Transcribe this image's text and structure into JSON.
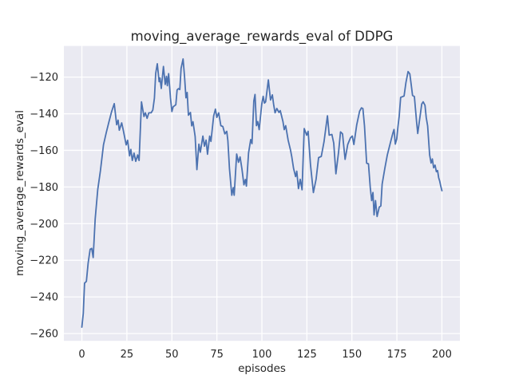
{
  "figure": {
    "title": "moving_average_rewards_eval of DDPG",
    "xlabel": "episodes",
    "ylabel": "moving_average_rewards_eval"
  },
  "axes": {
    "background_color": "#EAEAF2",
    "grid_color": "#FFFFFF",
    "line_color": "#4C72B0",
    "text_color": "#262626",
    "xlim": [
      -10,
      210
    ],
    "ylim": [
      -264,
      -103
    ],
    "xtick_values": [
      0,
      25,
      50,
      75,
      100,
      125,
      150,
      175,
      200
    ],
    "xtick_labels": [
      "0",
      "25",
      "50",
      "75",
      "100",
      "125",
      "150",
      "175",
      "200"
    ],
    "ytick_values": [
      -120,
      -140,
      -160,
      -180,
      -200,
      -220,
      -240,
      -260
    ],
    "ytick_labels": [
      "−120",
      "−140",
      "−160",
      "−180",
      "−200",
      "−220",
      "−240",
      "−260"
    ]
  },
  "chart_data": {
    "type": "line",
    "title": "moving_average_rewards_eval of DDPG",
    "xlabel": "episodes",
    "ylabel": "moving_average_rewards_eval",
    "series_name": "moving_average_rewards_eval",
    "legend": false,
    "grid": true,
    "xlim": [
      -10,
      210
    ],
    "ylim": [
      -264,
      -103
    ],
    "x": [
      0,
      0.8,
      1.5,
      2.5,
      3.5,
      4.6,
      5.5,
      6.3,
      7.4,
      8.8,
      10.3,
      12,
      13.5,
      15,
      16.5,
      18,
      19.3,
      20.1,
      20.8,
      22.1,
      23,
      24.6,
      25.4,
      26.5,
      27.2,
      28,
      29,
      29.9,
      31,
      31.8,
      33.1,
      34.5,
      35.3,
      36.2,
      37.2,
      38.5,
      39.4,
      40.3,
      41,
      41.9,
      42.9,
      43.4,
      44.1,
      45.3,
      46.3,
      47,
      47.5,
      48.2,
      49.2,
      50,
      50.7,
      52.2,
      52.9,
      53.6,
      54.4,
      55.1,
      56.2,
      57,
      57.8,
      58.5,
      59.2,
      60.3,
      61,
      61.7,
      62.9,
      63.9,
      65,
      65.8,
      67.2,
      68.1,
      69,
      69.8,
      71,
      71.7,
      73.2,
      74.2,
      75,
      76,
      77.2,
      78.3,
      79.4,
      80.5,
      81.1,
      82,
      83.3,
      84.1,
      84.6,
      86,
      87,
      87.9,
      88.9,
      90,
      90.8,
      91.4,
      92.6,
      93.8,
      94.5,
      95.5,
      96.2,
      97,
      97.7,
      98.5,
      99.9,
      100.7,
      101.4,
      102.1,
      103.6,
      104.8,
      105.8,
      106.5,
      107.3,
      108.3,
      109.5,
      110.2,
      111.7,
      112.4,
      113.2,
      114.6,
      115.9,
      116.6,
      117.6,
      118.7,
      119.4,
      120.3,
      121.3,
      122.3,
      123.5,
      124.9,
      125.7,
      127,
      128.6,
      130.1,
      131.5,
      133,
      134.5,
      136.4,
      137.4,
      138.9,
      139.9,
      141.1,
      142.6,
      143.7,
      144.8,
      146.2,
      147.7,
      149.2,
      150.2,
      151.1,
      152.7,
      154.3,
      155.3,
      156.1,
      157,
      158.2,
      159.2,
      160.2,
      161,
      161.7,
      162.3,
      163.1,
      164,
      165.2,
      166.1,
      166.8,
      168.3,
      169.7,
      171.2,
      172.7,
      173.4,
      174.1,
      174.9,
      175.6,
      176.3,
      177.1,
      179,
      180,
      181.2,
      182.2,
      182.9,
      183.7,
      184.7,
      185.9,
      186.6,
      187.4,
      188.1,
      188.8,
      189.6,
      190.6,
      191.3,
      192.1,
      193.2,
      194,
      194.7,
      195.4,
      196.2,
      196.9,
      197.6,
      198.2,
      198.8,
      199.5,
      200
    ],
    "y": [
      -256.5,
      -249,
      -232.5,
      -231.5,
      -221.5,
      -214,
      -213.5,
      -218.5,
      -197.5,
      -181.5,
      -171,
      -157,
      -150.5,
      -144.5,
      -139,
      -134.5,
      -146,
      -143.5,
      -149,
      -145,
      -149,
      -157,
      -154.5,
      -163,
      -159.5,
      -165.5,
      -161.5,
      -166,
      -162.5,
      -165.5,
      -133.5,
      -141.5,
      -139.5,
      -142.5,
      -139.5,
      -139.5,
      -138,
      -131.5,
      -118,
      -112.7,
      -122.5,
      -120.5,
      -126.2,
      -114.2,
      -124,
      -119.6,
      -124.7,
      -118.1,
      -131.3,
      -138.8,
      -136.2,
      -135.1,
      -127,
      -126.3,
      -126.8,
      -115.2,
      -110.1,
      -119.6,
      -131.3,
      -128.4,
      -140.8,
      -139.3,
      -146.6,
      -144.4,
      -152.4,
      -170.5,
      -156.6,
      -161,
      -152.2,
      -157.7,
      -154.4,
      -162.1,
      -152.2,
      -155.1,
      -141.2,
      -137.5,
      -142,
      -139.5,
      -146.5,
      -147,
      -151,
      -149.6,
      -154.7,
      -170,
      -184.5,
      -180.3,
      -184.5,
      -162,
      -166.5,
      -163.6,
      -170.1,
      -178.8,
      -175.9,
      -179.5,
      -161.4,
      -154.1,
      -156.3,
      -133,
      -129.5,
      -146.5,
      -144.3,
      -148.7,
      -134.9,
      -130.5,
      -134.2,
      -133.5,
      -121.5,
      -132.5,
      -129.7,
      -134.9,
      -139.5,
      -137.1,
      -139.3,
      -138.3,
      -144.3,
      -148.7,
      -146.5,
      -154.5,
      -159.7,
      -163.4,
      -169.9,
      -174.3,
      -171.4,
      -180.9,
      -175.8,
      -181.5,
      -148.1,
      -151.7,
      -149.6,
      -168,
      -183,
      -175.7,
      -164,
      -163.3,
      -155.3,
      -141.1,
      -151.7,
      -151.3,
      -156.1,
      -172.8,
      -161.1,
      -149.9,
      -151,
      -164.9,
      -156.8,
      -153.2,
      -152.2,
      -156.8,
      -146,
      -138.6,
      -136.8,
      -137.2,
      -146.6,
      -167,
      -167.4,
      -180.1,
      -187.4,
      -183,
      -195.2,
      -187.4,
      -196.1,
      -191,
      -190.3,
      -178.5,
      -169.8,
      -162.5,
      -156.6,
      -150.8,
      -148.6,
      -156.6,
      -153.7,
      -147.1,
      -141.3,
      -131.1,
      -130.3,
      -123,
      -117,
      -118.3,
      -123.7,
      -130,
      -130.6,
      -144.2,
      -150.8,
      -144.9,
      -139.8,
      -134.7,
      -133.5,
      -135.4,
      -142,
      -146.7,
      -162.5,
      -166.9,
      -164.7,
      -169.5,
      -168.1,
      -171.6,
      -171,
      -174.9,
      -176.8,
      -180,
      -182
    ]
  }
}
